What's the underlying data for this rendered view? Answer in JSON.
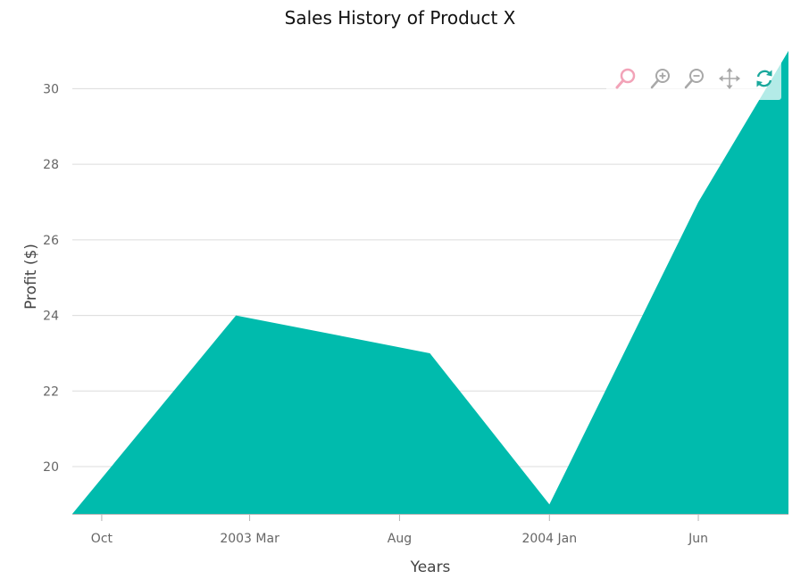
{
  "colors": {
    "area": "#00bbad",
    "grid": "#dcdcdc",
    "axis": "#b5b5b5"
  },
  "toolbar": {
    "tools": [
      {
        "name": "selection-zoom-icon",
        "color": "#f2a3b8"
      },
      {
        "name": "zoom-in-icon",
        "color": "#a8a8a8"
      },
      {
        "name": "zoom-out-icon",
        "color": "#a8a8a8"
      },
      {
        "name": "pan-icon",
        "color": "#a8a8a8"
      },
      {
        "name": "reset-icon",
        "color": "#1aa89c"
      }
    ]
  },
  "chart_data": {
    "type": "area",
    "title": "Sales History of Product X",
    "xlabel": "Years",
    "ylabel": "Profit ($)",
    "x_ticks": [
      "Oct",
      "2003 Mar",
      "Aug",
      "2004 Jan",
      "Jun"
    ],
    "x_tick_dates": [
      "2002-10-01",
      "2003-03-01",
      "2003-08-01",
      "2004-01-01",
      "2004-06-01"
    ],
    "xlim": [
      "2002-09-01",
      "2004-09-01"
    ],
    "ylim": [
      18.75,
      31
    ],
    "y_ticks": [
      20,
      22,
      24,
      26,
      28,
      30
    ],
    "grid": true,
    "legend": "none",
    "series": [
      {
        "x": [
          "2002-09-01",
          "2003-02-15",
          "2003-09-01",
          "2004-01-01",
          "2004-06-01",
          "2004-09-01"
        ],
        "y": [
          18.75,
          24,
          23,
          19,
          27,
          31
        ]
      }
    ]
  }
}
